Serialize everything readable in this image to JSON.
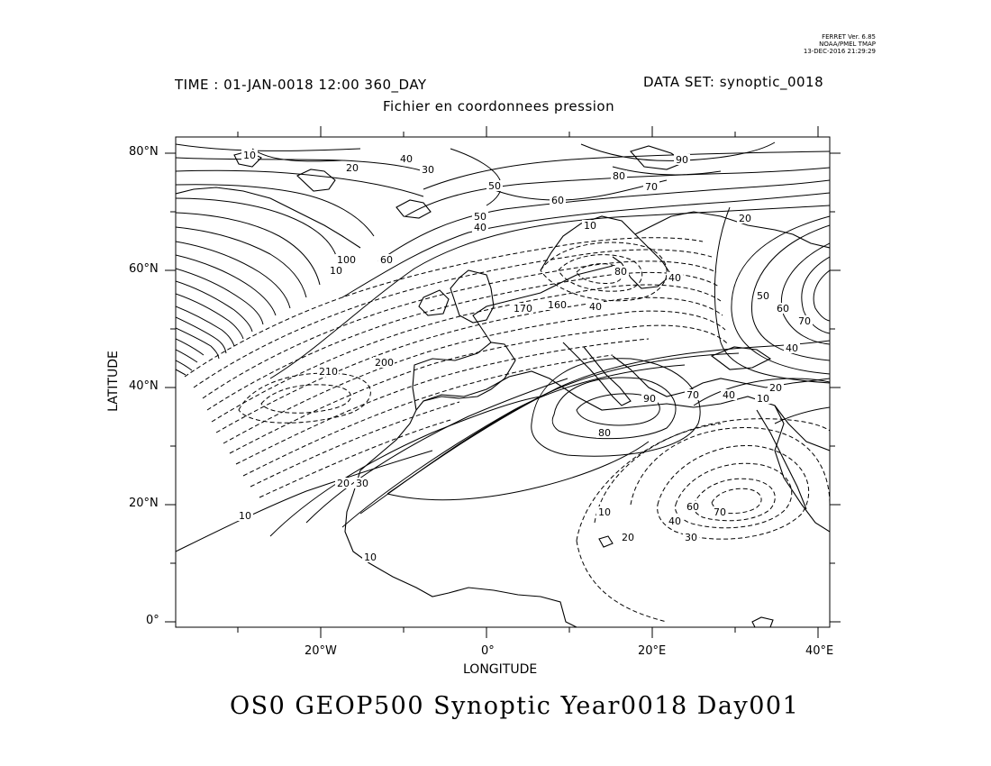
{
  "stamp": {
    "line1": "FERRET Ver. 6.85",
    "line2": "NOAA/PMEL TMAP",
    "line3": "13-DEC-2016 21:29:29"
  },
  "header": {
    "time": "TIME : 01-JAN-0018 12:00 360_DAY",
    "dataset": "DATA SET: synoptic_0018",
    "subtitle": "Fichier en coordonnees pression"
  },
  "axes": {
    "xlabel": "LONGITUDE",
    "ylabel": "LATITUDE",
    "lon_range": [
      -37,
      42
    ],
    "lat_range": [
      -1,
      83
    ],
    "x_ticks": [
      "20°W",
      "0°",
      "20°E",
      "40°E"
    ],
    "y_ticks": [
      "0°",
      "20°N",
      "40°N",
      "60°N",
      "80°N"
    ]
  },
  "title": "OS0 GEOP500 Synoptic Year0018 Day001",
  "contour_labels": [
    "10",
    "20",
    "30",
    "40",
    "50",
    "60",
    "70",
    "80",
    "90",
    "100",
    "160",
    "170",
    "200",
    "210"
  ]
}
